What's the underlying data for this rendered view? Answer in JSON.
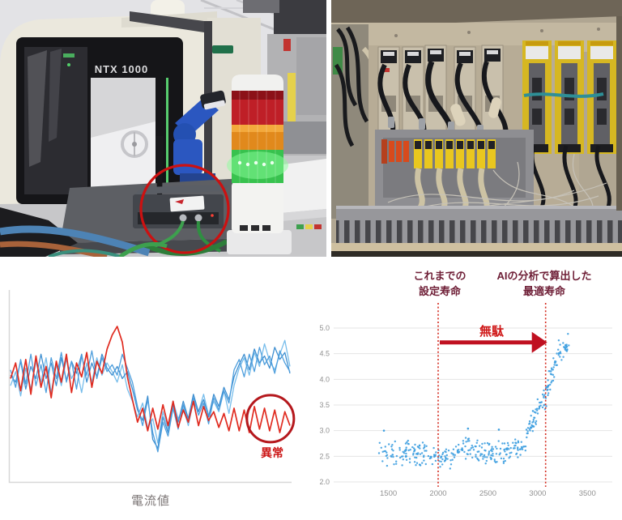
{
  "page": {
    "background": "#ffffff"
  },
  "photos": {
    "machine": {
      "description": "machine tool with signal tower and circled edge device",
      "machine_label": "NTX 1000",
      "highlight_color": "#cc1111",
      "signal_tower_colors": {
        "red": "#bf1f27",
        "orange": "#e1891c",
        "green": "#38c24e"
      }
    },
    "cabinet": {
      "description": "electrical cabinet interior with servo drives and wiring duct",
      "drive_yellow": "#d6b722"
    }
  },
  "chart_data": [
    {
      "type": "line",
      "title": "",
      "xlabel": "電流値",
      "annotation": {
        "label": "異常",
        "cx_frac": 0.93,
        "cy_value": 34
      },
      "axis_color": "#d8d8d8",
      "series": [
        {
          "name": "normal-blue-2",
          "color": "#77bdeb",
          "width": 1.3,
          "values": [
            53,
            61,
            47,
            63,
            51,
            67,
            55,
            69,
            49,
            65,
            53,
            68,
            57,
            63,
            49,
            66,
            55,
            69,
            59,
            66,
            61,
            55,
            65,
            51,
            44,
            35,
            43,
            29,
            34,
            20,
            38,
            28,
            44,
            34,
            40,
            30,
            44,
            38,
            48,
            36,
            44,
            38,
            50,
            37,
            53,
            63,
            69,
            59,
            72,
            64,
            77,
            67,
            62,
            71,
            79,
            64
          ]
        },
        {
          "name": "normal-blue-3",
          "color": "#3f8fd0",
          "width": 1.3,
          "values": [
            59,
            55,
            67,
            51,
            64,
            57,
            71,
            57,
            66,
            53,
            69,
            56,
            67,
            60,
            71,
            55,
            66,
            58,
            71,
            63,
            59,
            64,
            57,
            61,
            51,
            39,
            33,
            47,
            22,
            17,
            35,
            26,
            42,
            32,
            44,
            34,
            48,
            38,
            45,
            35,
            48,
            41,
            52,
            45,
            58,
            65,
            71,
            62,
            74,
            66,
            70,
            63,
            75,
            68,
            72,
            60
          ]
        },
        {
          "name": "normal-blue-1",
          "color": "#4f9fdd",
          "width": 1.3,
          "values": [
            62,
            52,
            68,
            54,
            71,
            53,
            65,
            49,
            69,
            57,
            72,
            55,
            67,
            51,
            70,
            59,
            73,
            57,
            69,
            61,
            65,
            59,
            71,
            63,
            55,
            41,
            30,
            45,
            26,
            15,
            32,
            24,
            40,
            28,
            42,
            32,
            46,
            36,
            43,
            31,
            46,
            39,
            50,
            43,
            62,
            68,
            58,
            71,
            61,
            75,
            65,
            70,
            60,
            73,
            66,
            61
          ]
        },
        {
          "name": "anomalous-red",
          "color": "#e02b20",
          "width": 1.7,
          "values": [
            57,
            66,
            50,
            68,
            48,
            70,
            52,
            64,
            46,
            67,
            55,
            71,
            49,
            66,
            58,
            72,
            52,
            67,
            60,
            74,
            82,
            87,
            78,
            58,
            45,
            32,
            40,
            27,
            40,
            28,
            42,
            30,
            44,
            29,
            39,
            32,
            44,
            30,
            41,
            33,
            38,
            29,
            37,
            27,
            40,
            27,
            39,
            26,
            41,
            28,
            40,
            27,
            39,
            26,
            38,
            30
          ]
        }
      ]
    },
    {
      "type": "scatter",
      "title": "",
      "xlim": [
        950,
        3750
      ],
      "ylim": [
        2.0,
        5.0
      ],
      "x_ticks": [
        1500,
        2000,
        2500,
        3000,
        3500
      ],
      "y_ticks": [
        2.0,
        2.5,
        3.0,
        3.5,
        4.0,
        4.5,
        5.0
      ],
      "grid": true,
      "tick_color": "#919191",
      "grid_color": "#e5e5e5",
      "point_color": "#3d9fe0",
      "guide_color": "#d42a1e",
      "arrow_color": "#c01020",
      "label_color": "#6e1e36",
      "waste_color": "#d01a1a",
      "seed": 7,
      "segments": [
        {
          "x0": 1400,
          "x1": 1900,
          "n": 95,
          "y0": 2.55,
          "y1": 2.55,
          "spread": 0.17
        },
        {
          "x0": 1900,
          "x1": 2150,
          "n": 45,
          "y0": 2.47,
          "y1": 2.47,
          "spread": 0.14
        },
        {
          "x0": 2150,
          "x1": 2450,
          "n": 55,
          "y0": 2.62,
          "y1": 2.62,
          "spread": 0.16
        },
        {
          "x0": 2450,
          "x1": 2700,
          "n": 55,
          "y0": 2.57,
          "y1": 2.57,
          "spread": 0.15
        },
        {
          "x0": 2700,
          "x1": 2880,
          "n": 35,
          "y0": 2.6,
          "y1": 2.68,
          "spread": 0.14
        },
        {
          "x0": 2880,
          "x1": 3010,
          "n": 38,
          "y0": 2.85,
          "y1": 3.45,
          "spread": 0.17
        },
        {
          "x0": 3010,
          "x1": 3110,
          "n": 30,
          "y0": 3.45,
          "y1": 3.85,
          "spread": 0.2
        },
        {
          "x0": 3110,
          "x1": 3210,
          "n": 26,
          "y0": 3.95,
          "y1": 4.45,
          "spread": 0.17
        },
        {
          "x0": 3210,
          "x1": 3320,
          "n": 28,
          "y0": 4.55,
          "y1": 4.7,
          "spread": 0.16
        }
      ],
      "outliers": [
        [
          1455,
          3.0
        ],
        [
          2300,
          3.04
        ],
        [
          2610,
          3.02
        ]
      ],
      "annotations": {
        "prev_life": {
          "line1": "これまでの",
          "line2": "設定寿命",
          "x": 2000
        },
        "optimal_life": {
          "line1": "AIの分析で算出した",
          "line2": "最適寿命",
          "x": 3080
        },
        "waste_arrow": {
          "label": "無駄",
          "x_from": 2000,
          "x_to": 3080,
          "y": 4.72
        }
      }
    }
  ]
}
